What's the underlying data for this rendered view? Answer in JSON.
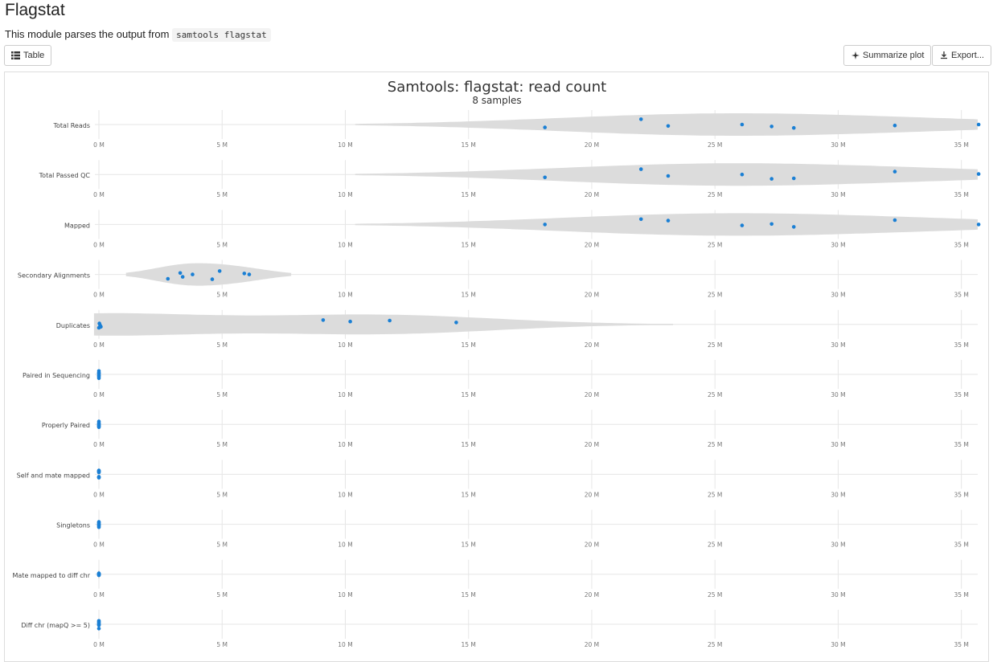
{
  "page": {
    "title": "Flagstat",
    "description": "This module parses the output from",
    "code": "samtools flagstat"
  },
  "buttons": {
    "table": "Table",
    "summarize": "Summarize plot",
    "export": "Export..."
  },
  "icons": [
    "table-icon",
    "sparkle-icon",
    "download-icon"
  ],
  "colors": {
    "violin": "#dcdcdc",
    "point": "#1a7fd4",
    "grid": "#e6e6e6",
    "tick": "#777777"
  },
  "chart_data": {
    "type": "violin",
    "title": "Samtools: flagstat: read count",
    "subtitle": "8 samples",
    "x_unit": "M",
    "xlim": [
      0,
      35.5
    ],
    "xticks": [
      0,
      5,
      10,
      15,
      20,
      25,
      30,
      35
    ],
    "tick_labels": [
      "0 M",
      "5 M",
      "10 M",
      "15 M",
      "20 M",
      "25 M",
      "30 M",
      "35 M"
    ],
    "grid": true,
    "series": [
      {
        "name": "Total Reads",
        "min": 10.4,
        "max": 35.8,
        "values": [
          18.1,
          22.0,
          23.1,
          26.1,
          27.3,
          28.2,
          32.3,
          35.7
        ],
        "jitter": [
          0.3,
          -0.55,
          0.15,
          0.0,
          0.2,
          0.35,
          0.1,
          0.0
        ]
      },
      {
        "name": "Total Passed QC",
        "min": 10.4,
        "max": 35.8,
        "values": [
          18.1,
          22.0,
          23.1,
          26.1,
          27.3,
          28.2,
          32.3,
          35.7
        ],
        "jitter": [
          0.3,
          -0.55,
          0.15,
          0.0,
          0.45,
          0.4,
          -0.3,
          -0.05
        ]
      },
      {
        "name": "Mapped",
        "min": 10.4,
        "max": 35.8,
        "values": [
          18.1,
          22.0,
          23.1,
          26.1,
          27.3,
          28.2,
          32.3,
          35.7
        ],
        "jitter": [
          0.0,
          -0.55,
          -0.4,
          0.1,
          -0.05,
          0.25,
          -0.45,
          0.0
        ]
      },
      {
        "name": "Secondary Alignments",
        "min": 1.1,
        "max": 7.8,
        "values": [
          2.8,
          3.3,
          3.4,
          3.8,
          4.6,
          4.9,
          5.9,
          6.1
        ],
        "jitter": [
          0.45,
          -0.15,
          0.25,
          0.0,
          0.5,
          -0.35,
          -0.1,
          0.0
        ]
      },
      {
        "name": "Duplicates",
        "min": -0.2,
        "max": 23.3,
        "values": [
          0.0,
          0.02,
          0.05,
          0.08,
          9.1,
          10.2,
          11.8,
          14.5
        ],
        "jitter": [
          0.35,
          -0.1,
          0.1,
          0.25,
          -0.45,
          -0.3,
          -0.4,
          -0.2
        ]
      },
      {
        "name": "Paired in Sequencing",
        "min": 0,
        "max": 0.01,
        "values": [
          0,
          0,
          0,
          0,
          0,
          0,
          0,
          0
        ],
        "jitter": [
          -0.35,
          -0.2,
          -0.05,
          0.1,
          0.25,
          0.4,
          -0.1,
          0.15
        ]
      },
      {
        "name": "Properly Paired",
        "min": 0,
        "max": 0.01,
        "values": [
          0,
          0,
          0,
          0,
          0,
          0,
          0,
          0
        ],
        "jitter": [
          -0.3,
          -0.15,
          0.0,
          0.15,
          0.3,
          -0.05,
          0.1,
          0.2
        ]
      },
      {
        "name": "Self and mate mapped",
        "min": 0,
        "max": 0.01,
        "values": [
          0,
          0,
          0,
          0,
          0,
          0,
          0,
          0
        ],
        "jitter": [
          -0.4,
          -0.3,
          -0.2,
          0.25,
          0.35,
          -0.25,
          0.3,
          -0.35
        ]
      },
      {
        "name": "Singletons",
        "min": 0,
        "max": 0.01,
        "values": [
          0,
          0,
          0,
          0,
          0,
          0,
          0,
          0
        ],
        "jitter": [
          -0.25,
          -0.1,
          0.05,
          0.2,
          0.3,
          -0.2,
          0.1,
          0.0
        ]
      },
      {
        "name": "Mate mapped to diff chr",
        "min": 0,
        "max": 0.01,
        "values": [
          0,
          0,
          0,
          0,
          0,
          0,
          0,
          0
        ],
        "jitter": [
          -0.1,
          0.0,
          0.1,
          0.05,
          -0.05,
          0.08,
          -0.08,
          0.02
        ]
      },
      {
        "name": "Diff chr (mapQ >= 5)",
        "min": 0,
        "max": 0.01,
        "values": [
          0,
          0,
          0,
          0,
          0,
          0,
          0,
          0
        ],
        "jitter": [
          -0.35,
          -0.2,
          -0.1,
          0.0,
          0.1,
          0.45,
          -0.3,
          0.05
        ]
      }
    ]
  }
}
